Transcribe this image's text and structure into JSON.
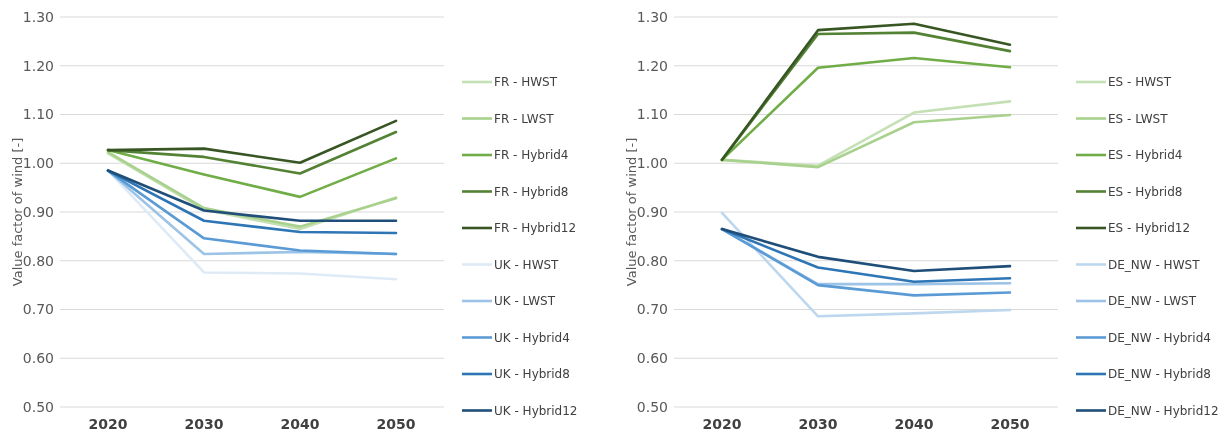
{
  "chart_data": [
    {
      "type": "line",
      "ylabel": "Value factor of wind [-]",
      "categories": [
        "2020",
        "2030",
        "2040",
        "2050"
      ],
      "ylim": [
        0.5,
        1.3
      ],
      "yticks": [
        {
          "value": 0.5,
          "label": "0.50"
        },
        {
          "value": 0.6,
          "label": "0.60"
        },
        {
          "value": 0.7,
          "label": "0.70"
        },
        {
          "value": 0.8,
          "label": "0.80"
        },
        {
          "value": 0.9,
          "label": "0.90"
        },
        {
          "value": 1.0,
          "label": "1.00"
        },
        {
          "value": 1.1,
          "label": "1.10"
        },
        {
          "value": 1.2,
          "label": "1.20"
        },
        {
          "value": 1.3,
          "label": "1.30"
        }
      ],
      "grid": "y",
      "legend": "right",
      "marker": "none",
      "line_style": "solid",
      "series": [
        {
          "name": "FR - HWST",
          "color": "#c5e0b4",
          "values": [
            1.02,
            0.905,
            0.865,
            0.93
          ]
        },
        {
          "name": "FR - LWST",
          "color": "#a9d18e",
          "values": [
            1.023,
            0.908,
            0.87,
            0.928
          ]
        },
        {
          "name": "FR - Hybrid4",
          "color": "#70ad47",
          "values": [
            1.027,
            0.977,
            0.931,
            1.01
          ]
        },
        {
          "name": "FR - Hybrid8",
          "color": "#548235",
          "values": [
            1.027,
            1.013,
            0.979,
            1.064
          ]
        },
        {
          "name": "FR - Hybrid12",
          "color": "#375623",
          "values": [
            1.027,
            1.03,
            1.001,
            1.087
          ]
        },
        {
          "name": "UK - HWST",
          "color": "#deebf7",
          "values": [
            0.985,
            0.776,
            0.774,
            0.762
          ]
        },
        {
          "name": "UK - LWST",
          "color": "#9dc3e6",
          "values": [
            0.985,
            0.814,
            0.818,
            0.814
          ]
        },
        {
          "name": "UK - Hybrid4",
          "color": "#5b9bd5",
          "values": [
            0.985,
            0.846,
            0.821,
            0.814
          ]
        },
        {
          "name": "UK - Hybrid8",
          "color": "#2e75b6",
          "values": [
            0.985,
            0.882,
            0.859,
            0.857
          ]
        },
        {
          "name": "UK - Hybrid12",
          "color": "#1f4e79",
          "values": [
            0.985,
            0.903,
            0.882,
            0.882
          ]
        }
      ]
    },
    {
      "type": "line",
      "ylabel": "Value factor of wind [-]",
      "categories": [
        "2020",
        "2030",
        "2040",
        "2050"
      ],
      "ylim": [
        0.5,
        1.3
      ],
      "yticks": [
        {
          "value": 0.5,
          "label": "0.50"
        },
        {
          "value": 0.6,
          "label": "0.60"
        },
        {
          "value": 0.7,
          "label": "0.70"
        },
        {
          "value": 0.8,
          "label": "0.80"
        },
        {
          "value": 0.9,
          "label": "0.90"
        },
        {
          "value": 1.0,
          "label": "1.00"
        },
        {
          "value": 1.1,
          "label": "1.10"
        },
        {
          "value": 1.2,
          "label": "1.20"
        },
        {
          "value": 1.3,
          "label": "1.30"
        }
      ],
      "grid": "y",
      "legend": "right",
      "marker": "none",
      "line_style": "solid",
      "series": [
        {
          "name": "ES - HWST",
          "color": "#c5e0b4",
          "values": [
            1.007,
            0.995,
            1.104,
            1.127
          ]
        },
        {
          "name": "ES - LWST",
          "color": "#a9d18e",
          "values": [
            1.007,
            0.992,
            1.084,
            1.099
          ]
        },
        {
          "name": "ES - Hybrid4",
          "color": "#70ad47",
          "values": [
            1.007,
            1.196,
            1.216,
            1.197
          ]
        },
        {
          "name": "ES - Hybrid8",
          "color": "#548235",
          "values": [
            1.007,
            1.265,
            1.268,
            1.23
          ]
        },
        {
          "name": "ES - Hybrid12",
          "color": "#375623",
          "values": [
            1.007,
            1.273,
            1.286,
            1.243
          ]
        },
        {
          "name": "DE_NW - HWST",
          "color": "#bdd7ee",
          "values": [
            0.898,
            0.686,
            0.692,
            0.699
          ]
        },
        {
          "name": "DE_NW - LWST",
          "color": "#9dc3e6",
          "values": [
            0.865,
            0.752,
            0.752,
            0.754
          ]
        },
        {
          "name": "DE_NW - Hybrid4",
          "color": "#5b9bd5",
          "values": [
            0.865,
            0.75,
            0.729,
            0.735
          ]
        },
        {
          "name": "DE_NW - Hybrid8",
          "color": "#2e75b6",
          "values": [
            0.865,
            0.786,
            0.757,
            0.764
          ]
        },
        {
          "name": "DE_NW - Hybrid12",
          "color": "#1f4e79",
          "values": [
            0.865,
            0.808,
            0.779,
            0.789
          ]
        }
      ]
    }
  ]
}
